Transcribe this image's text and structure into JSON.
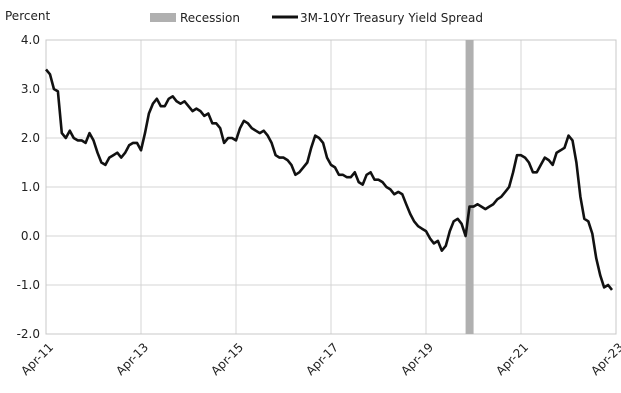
{
  "chart_data": {
    "type": "line",
    "ylabel": "Percent",
    "ylim": [
      -2.0,
      4.0
    ],
    "y_ticks": [
      "4.0",
      "3.0",
      "2.0",
      "1.0",
      "0.0",
      "-1.0",
      "-2.0"
    ],
    "x_ticks": [
      "Apr-11",
      "Apr-13",
      "Apr-15",
      "Apr-17",
      "Apr-19",
      "Apr-21",
      "Apr-23"
    ],
    "grid": true,
    "legend_position": "top",
    "recession": {
      "name": "Recession",
      "start": "2020-02",
      "end": "2020-04",
      "color": "#b0b0b0"
    },
    "series": [
      {
        "name": "3M-10Yr Treasury Yield Spread",
        "color": "#111111",
        "points": [
          [
            "2011-04",
            3.4
          ],
          [
            "2011-05",
            3.3
          ],
          [
            "2011-06",
            3.0
          ],
          [
            "2011-07",
            2.95
          ],
          [
            "2011-08",
            2.1
          ],
          [
            "2011-09",
            2.0
          ],
          [
            "2011-10",
            2.15
          ],
          [
            "2011-11",
            2.0
          ],
          [
            "2011-12",
            1.95
          ],
          [
            "2012-01",
            1.95
          ],
          [
            "2012-02",
            1.9
          ],
          [
            "2012-03",
            2.1
          ],
          [
            "2012-04",
            1.95
          ],
          [
            "2012-05",
            1.7
          ],
          [
            "2012-06",
            1.5
          ],
          [
            "2012-07",
            1.45
          ],
          [
            "2012-08",
            1.6
          ],
          [
            "2012-09",
            1.65
          ],
          [
            "2012-10",
            1.7
          ],
          [
            "2012-11",
            1.6
          ],
          [
            "2012-12",
            1.7
          ],
          [
            "2013-01",
            1.85
          ],
          [
            "2013-02",
            1.9
          ],
          [
            "2013-03",
            1.9
          ],
          [
            "2013-04",
            1.75
          ],
          [
            "2013-05",
            2.1
          ],
          [
            "2013-06",
            2.5
          ],
          [
            "2013-07",
            2.7
          ],
          [
            "2013-08",
            2.8
          ],
          [
            "2013-09",
            2.65
          ],
          [
            "2013-10",
            2.65
          ],
          [
            "2013-11",
            2.8
          ],
          [
            "2013-12",
            2.85
          ],
          [
            "2014-01",
            2.75
          ],
          [
            "2014-02",
            2.7
          ],
          [
            "2014-03",
            2.75
          ],
          [
            "2014-04",
            2.65
          ],
          [
            "2014-05",
            2.55
          ],
          [
            "2014-06",
            2.6
          ],
          [
            "2014-07",
            2.55
          ],
          [
            "2014-08",
            2.45
          ],
          [
            "2014-09",
            2.5
          ],
          [
            "2014-10",
            2.3
          ],
          [
            "2014-11",
            2.3
          ],
          [
            "2014-12",
            2.2
          ],
          [
            "2015-01",
            1.9
          ],
          [
            "2015-02",
            2.0
          ],
          [
            "2015-03",
            2.0
          ],
          [
            "2015-04",
            1.95
          ],
          [
            "2015-05",
            2.2
          ],
          [
            "2015-06",
            2.35
          ],
          [
            "2015-07",
            2.3
          ],
          [
            "2015-08",
            2.2
          ],
          [
            "2015-09",
            2.15
          ],
          [
            "2015-10",
            2.1
          ],
          [
            "2015-11",
            2.15
          ],
          [
            "2015-12",
            2.05
          ],
          [
            "2016-01",
            1.9
          ],
          [
            "2016-02",
            1.65
          ],
          [
            "2016-03",
            1.6
          ],
          [
            "2016-04",
            1.6
          ],
          [
            "2016-05",
            1.55
          ],
          [
            "2016-06",
            1.45
          ],
          [
            "2016-07",
            1.25
          ],
          [
            "2016-08",
            1.3
          ],
          [
            "2016-09",
            1.4
          ],
          [
            "2016-10",
            1.5
          ],
          [
            "2016-11",
            1.8
          ],
          [
            "2016-12",
            2.05
          ],
          [
            "2017-01",
            2.0
          ],
          [
            "2017-02",
            1.9
          ],
          [
            "2017-03",
            1.6
          ],
          [
            "2017-04",
            1.45
          ],
          [
            "2017-05",
            1.4
          ],
          [
            "2017-06",
            1.25
          ],
          [
            "2017-07",
            1.25
          ],
          [
            "2017-08",
            1.2
          ],
          [
            "2017-09",
            1.2
          ],
          [
            "2017-10",
            1.3
          ],
          [
            "2017-11",
            1.1
          ],
          [
            "2017-12",
            1.05
          ],
          [
            "2018-01",
            1.25
          ],
          [
            "2018-02",
            1.3
          ],
          [
            "2018-03",
            1.15
          ],
          [
            "2018-04",
            1.15
          ],
          [
            "2018-05",
            1.1
          ],
          [
            "2018-06",
            1.0
          ],
          [
            "2018-07",
            0.95
          ],
          [
            "2018-08",
            0.85
          ],
          [
            "2018-09",
            0.9
          ],
          [
            "2018-10",
            0.85
          ],
          [
            "2018-11",
            0.65
          ],
          [
            "2018-12",
            0.45
          ],
          [
            "2019-01",
            0.3
          ],
          [
            "2019-02",
            0.2
          ],
          [
            "2019-03",
            0.15
          ],
          [
            "2019-04",
            0.1
          ],
          [
            "2019-05",
            -0.05
          ],
          [
            "2019-06",
            -0.15
          ],
          [
            "2019-07",
            -0.1
          ],
          [
            "2019-08",
            -0.3
          ],
          [
            "2019-09",
            -0.2
          ],
          [
            "2019-10",
            0.1
          ],
          [
            "2019-11",
            0.3
          ],
          [
            "2019-12",
            0.35
          ],
          [
            "2020-01",
            0.25
          ],
          [
            "2020-02",
            0.0
          ],
          [
            "2020-03",
            0.6
          ],
          [
            "2020-04",
            0.6
          ],
          [
            "2020-05",
            0.65
          ],
          [
            "2020-06",
            0.6
          ],
          [
            "2020-07",
            0.55
          ],
          [
            "2020-08",
            0.6
          ],
          [
            "2020-09",
            0.65
          ],
          [
            "2020-10",
            0.75
          ],
          [
            "2020-11",
            0.8
          ],
          [
            "2020-12",
            0.9
          ],
          [
            "2021-01",
            1.0
          ],
          [
            "2021-02",
            1.3
          ],
          [
            "2021-03",
            1.65
          ],
          [
            "2021-04",
            1.65
          ],
          [
            "2021-05",
            1.6
          ],
          [
            "2021-06",
            1.5
          ],
          [
            "2021-07",
            1.3
          ],
          [
            "2021-08",
            1.3
          ],
          [
            "2021-09",
            1.45
          ],
          [
            "2021-10",
            1.6
          ],
          [
            "2021-11",
            1.55
          ],
          [
            "2021-12",
            1.45
          ],
          [
            "2022-01",
            1.7
          ],
          [
            "2022-02",
            1.75
          ],
          [
            "2022-03",
            1.8
          ],
          [
            "2022-04",
            2.05
          ],
          [
            "2022-05",
            1.95
          ],
          [
            "2022-06",
            1.5
          ],
          [
            "2022-07",
            0.8
          ],
          [
            "2022-08",
            0.35
          ],
          [
            "2022-09",
            0.3
          ],
          [
            "2022-10",
            0.05
          ],
          [
            "2022-11",
            -0.45
          ],
          [
            "2022-12",
            -0.8
          ],
          [
            "2023-01",
            -1.05
          ],
          [
            "2023-02",
            -1.0
          ],
          [
            "2023-03",
            -1.1
          ]
        ]
      }
    ]
  }
}
